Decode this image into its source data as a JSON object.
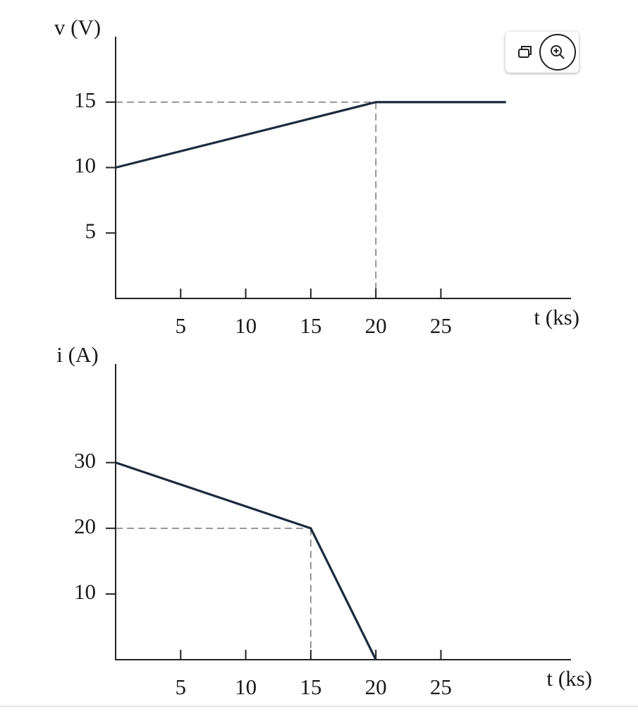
{
  "chart_data": [
    {
      "type": "line",
      "x": [
        0,
        20,
        30
      ],
      "values": [
        10,
        15,
        15
      ],
      "color": "#1c2b3c",
      "xlim": [
        0,
        35
      ],
      "xticks": [
        5,
        10,
        15,
        20,
        25
      ],
      "ylim": [
        0,
        20
      ],
      "yticks": [
        5,
        10,
        15
      ],
      "xlabel": "t (ks)",
      "ylabel": "v (V)",
      "guides": [
        {
          "x": 20,
          "y": 15
        }
      ]
    },
    {
      "type": "line",
      "x": [
        0,
        15,
        20
      ],
      "values": [
        30,
        20,
        0
      ],
      "color": "#1c2b3c",
      "xlim": [
        0,
        35
      ],
      "xticks": [
        5,
        10,
        15,
        20,
        25
      ],
      "ylim": [
        0,
        45
      ],
      "yticks": [
        10,
        20,
        30
      ],
      "xlabel": "t (ks)",
      "ylabel": "i (A)",
      "guides": [
        {
          "x": 15,
          "y": 20
        }
      ]
    }
  ]
}
